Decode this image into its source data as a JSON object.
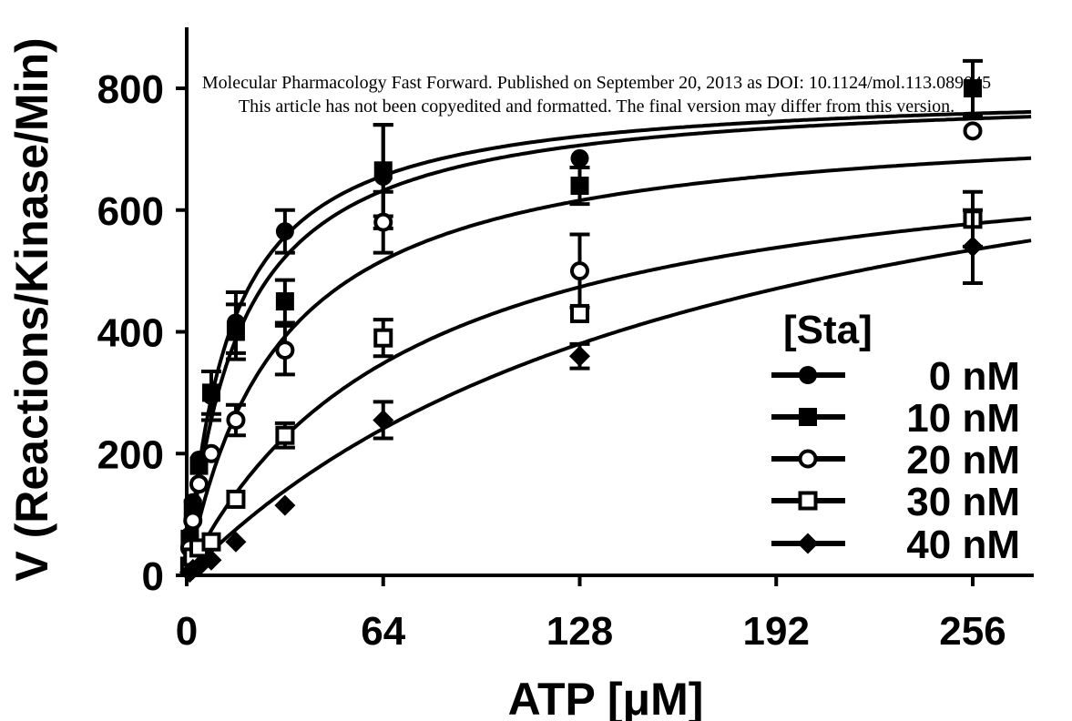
{
  "watermark": {
    "line1": "Molecular Pharmacology Fast Forward. Published on September 20, 2013 as DOI: 10.1124/mol.113.089045",
    "line2": "This article has not been copyedited and formatted. The final version may differ from this version."
  },
  "chart_data": {
    "type": "scatter",
    "xlabel": "ATP [μM]",
    "ylabel": "V (Reactions/Kinase/Min)",
    "xlim": [
      0,
      275
    ],
    "ylim": [
      0,
      900
    ],
    "xticks": [
      0,
      64,
      128,
      192,
      256
    ],
    "yticks": [
      0,
      200,
      400,
      600,
      800
    ],
    "legend": {
      "title": "[Sta]",
      "position": "right"
    },
    "series": [
      {
        "name": "0 nM",
        "marker": "circle-filled",
        "x": [
          1,
          2,
          4,
          8,
          16,
          32,
          64,
          128,
          256
        ],
        "y": [
          65,
          120,
          190,
          295,
          415,
          565,
          655,
          685,
          800
        ],
        "err": [
          0,
          0,
          0,
          40,
          50,
          35,
          85,
          0,
          45
        ],
        "fit": {
          "vmax": 800,
          "km": 14
        }
      },
      {
        "name": "10 nM",
        "marker": "square-filled",
        "x": [
          1,
          2,
          4,
          8,
          16,
          32,
          64,
          128,
          256
        ],
        "y": [
          60,
          110,
          180,
          300,
          400,
          450,
          665,
          640,
          800
        ],
        "err": [
          0,
          0,
          0,
          35,
          45,
          35,
          75,
          30,
          0
        ],
        "fit": {
          "vmax": 800,
          "km": 17
        }
      },
      {
        "name": "20 nM",
        "marker": "circle-open",
        "x": [
          1,
          2,
          4,
          8,
          16,
          32,
          64,
          128,
          256
        ],
        "y": [
          45,
          90,
          150,
          200,
          255,
          370,
          580,
          500,
          730
        ],
        "err": [
          0,
          0,
          0,
          0,
          25,
          40,
          50,
          60,
          0
        ],
        "fit": {
          "vmax": 760,
          "km": 30
        }
      },
      {
        "name": "30 nM",
        "marker": "square-open",
        "x": [
          1,
          2,
          4,
          8,
          16,
          32,
          64,
          128,
          256
        ],
        "y": [
          15,
          30,
          45,
          55,
          125,
          230,
          390,
          430,
          585
        ],
        "err": [
          0,
          0,
          0,
          0,
          0,
          20,
          30,
          0,
          45
        ],
        "fit": {
          "vmax": 740,
          "km": 72
        }
      },
      {
        "name": "40 nM",
        "marker": "diamond-filled",
        "x": [
          1,
          2,
          4,
          8,
          16,
          32,
          64,
          128,
          256
        ],
        "y": [
          5,
          10,
          15,
          25,
          55,
          115,
          255,
          360,
          540
        ],
        "err": [
          0,
          0,
          0,
          0,
          0,
          0,
          30,
          20,
          60
        ],
        "fit": {
          "vmax": 900,
          "km": 175
        }
      }
    ]
  }
}
